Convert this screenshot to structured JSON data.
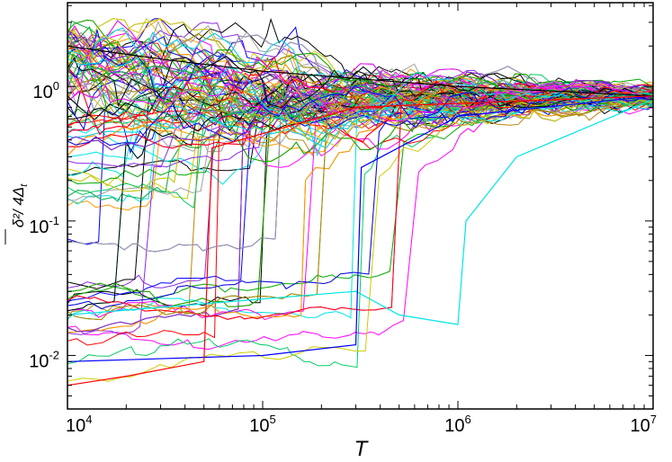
{
  "chart_data": {
    "type": "line",
    "title": "",
    "xlabel": "T",
    "ylabel_main": "δ²",
    "ylabel_rest": "/ 4Δ",
    "ylabel_sub": "t",
    "xscale": "log",
    "yscale": "log",
    "xlim": [
      10000,
      10000000
    ],
    "ylim": [
      0.004,
      4.2
    ],
    "grid": false,
    "legend": "none",
    "x_ticks": [
      {
        "base": "10",
        "exp": "4",
        "value": 10000
      },
      {
        "base": "10",
        "exp": "5",
        "value": 100000
      },
      {
        "base": "10",
        "exp": "6",
        "value": 1000000
      },
      {
        "base": "10",
        "exp": "7",
        "value": 10000000
      }
    ],
    "y_ticks": [
      {
        "base": "10",
        "exp": "-2",
        "value": 0.01
      },
      {
        "base": "10",
        "exp": "-1",
        "value": 0.1
      },
      {
        "base": "10",
        "exp": "0",
        "value": 1
      }
    ],
    "n_series": 150,
    "converge_value": 0.85,
    "palette": [
      "#000000",
      "#ff0000",
      "#0000ff",
      "#00aa00",
      "#00e5e5",
      "#ff00ff",
      "#cccc00",
      "#ff9900",
      "#8a2be2",
      "#00cc66",
      "#a0a0a0",
      "#b8860b"
    ],
    "series_samples": [
      {
        "color": "#000000",
        "x": [
          10000,
          30000,
          100000,
          1000000,
          10000000
        ],
        "y": [
          2.0,
          1.6,
          1.3,
          1.0,
          0.85
        ]
      },
      {
        "color": "#00e5e5",
        "x": [
          10000,
          300000,
          500000,
          1000000,
          1100000,
          2000000,
          10000000
        ],
        "y": [
          0.02,
          0.03,
          0.02,
          0.017,
          0.1,
          0.3,
          0.8
        ]
      },
      {
        "color": "#0000ff",
        "x": [
          10000,
          100000,
          300000,
          320000,
          1000000,
          10000000
        ],
        "y": [
          0.009,
          0.01,
          0.012,
          0.25,
          0.6,
          0.85
        ]
      },
      {
        "color": "#ff0000",
        "x": [
          10000,
          20000,
          50000,
          55000,
          300000,
          10000000
        ],
        "y": [
          0.006,
          0.007,
          0.009,
          0.35,
          0.7,
          0.85
        ]
      }
    ]
  }
}
